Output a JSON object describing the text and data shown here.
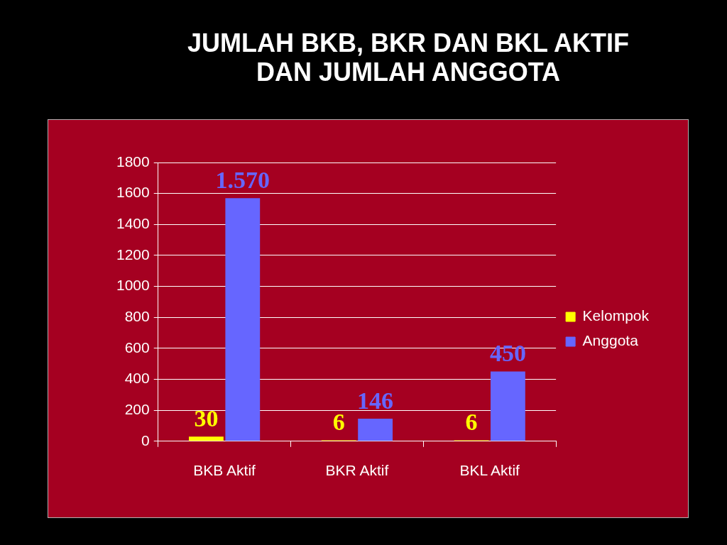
{
  "chart_data": {
    "type": "bar",
    "title": "JUMLAH BKB, BKR DAN BKL AKTIF DAN JUMLAH ANGGOTA",
    "categories": [
      "BKB Aktif",
      "BKR Aktif",
      "BKL Aktif"
    ],
    "series": [
      {
        "name": "Kelompok",
        "color": "#ffff00",
        "values": [
          30,
          6,
          6
        ],
        "value_labels": [
          "30",
          "6",
          "6"
        ]
      },
      {
        "name": "Anggota",
        "color": "#6666ff",
        "values": [
          1570,
          146,
          450
        ],
        "value_labels": [
          "1.570",
          "146",
          "450"
        ]
      }
    ],
    "ylim": [
      0,
      1800
    ],
    "yticks": [
      0,
      200,
      400,
      600,
      800,
      1000,
      1200,
      1400,
      1600,
      1800
    ],
    "grid": "y",
    "legend": "right"
  }
}
